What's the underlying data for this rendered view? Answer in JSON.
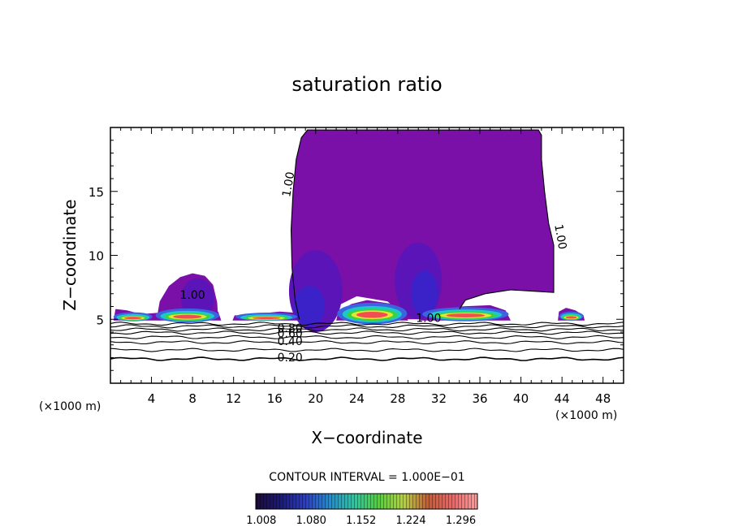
{
  "chart_data": {
    "type": "heatmap",
    "title": "saturation ratio",
    "xlabel": "X−coordinate",
    "ylabel": "Z−coordinate",
    "x_unit": "(×1000 m)",
    "y_unit": "(×1000 m)",
    "xlim": [
      0,
      50
    ],
    "ylim": [
      0,
      20
    ],
    "x_ticks": [
      4,
      8,
      12,
      16,
      20,
      24,
      28,
      32,
      36,
      40,
      44,
      48
    ],
    "y_ticks": [
      5,
      10,
      15
    ],
    "contour_interval_text": "CONTOUR INTERVAL = 1.000E−01",
    "colorbar_ticks": [
      "1.008",
      "1.080",
      "1.152",
      "1.224",
      "1.296"
    ],
    "colorbar_range": [
      1.0,
      1.32
    ],
    "colorbar_stops": [
      "#1e0a3c",
      "#1a1a7a",
      "#2a3cc8",
      "#1e8cd2",
      "#28c8a0",
      "#50d232",
      "#b4d23c",
      "#c85a32",
      "#f06464",
      "#ff9c9c"
    ],
    "colors": {
      "saturated_region": "#7a10a8",
      "saturated_core": "#4a1ed0",
      "core_blue": "#3a64e0",
      "core_cyan": "#1ec8c8",
      "core_green": "#3cd23c",
      "core_yellow": "#e6e632",
      "core_red": "#f05050"
    },
    "contour_labels": [
      {
        "value": "1.00",
        "x": 8.0,
        "z": 6.6
      },
      {
        "value": "1.00",
        "x": 17.7,
        "z": 15.5
      },
      {
        "value": "1.00",
        "x": 43.5,
        "z": 11.4
      },
      {
        "value": "1.00",
        "x": 31.0,
        "z": 4.8
      },
      {
        "value": "0.80",
        "x": 17.5,
        "z": 4.0
      },
      {
        "value": "0.60",
        "x": 17.5,
        "z": 3.6
      },
      {
        "value": "0.40",
        "x": 17.5,
        "z": 3.0
      },
      {
        "value": "0.20",
        "x": 17.5,
        "z": 1.7
      }
    ],
    "subsaturated_contours": [
      {
        "value": 0.2,
        "z": 1.9
      },
      {
        "value": 0.3,
        "z": 2.6
      },
      {
        "value": 0.4,
        "z": 3.2
      },
      {
        "value": 0.5,
        "z": 3.6
      },
      {
        "value": 0.6,
        "z": 3.95
      },
      {
        "value": 0.7,
        "z": 4.2
      },
      {
        "value": 0.8,
        "z": 4.45
      },
      {
        "value": 0.9,
        "z": 4.65
      }
    ],
    "saturated_cells": [
      {
        "x_range": [
          0.5,
          11
        ],
        "z_top": 5.6
      },
      {
        "x_range": [
          4.5,
          10.5
        ],
        "z_top": 8.6
      },
      {
        "x_range": [
          12,
          18.5
        ],
        "z_top": 5.5
      },
      {
        "x_range": [
          18,
          43
        ],
        "z_top": 19.8
      },
      {
        "x_range": [
          22,
          29
        ],
        "z_top": 6.5
      },
      {
        "x_range": [
          30,
          39
        ],
        "z_top": 6.0
      },
      {
        "x_range": [
          43.5,
          46
        ],
        "z_top": 5.8
      }
    ]
  }
}
